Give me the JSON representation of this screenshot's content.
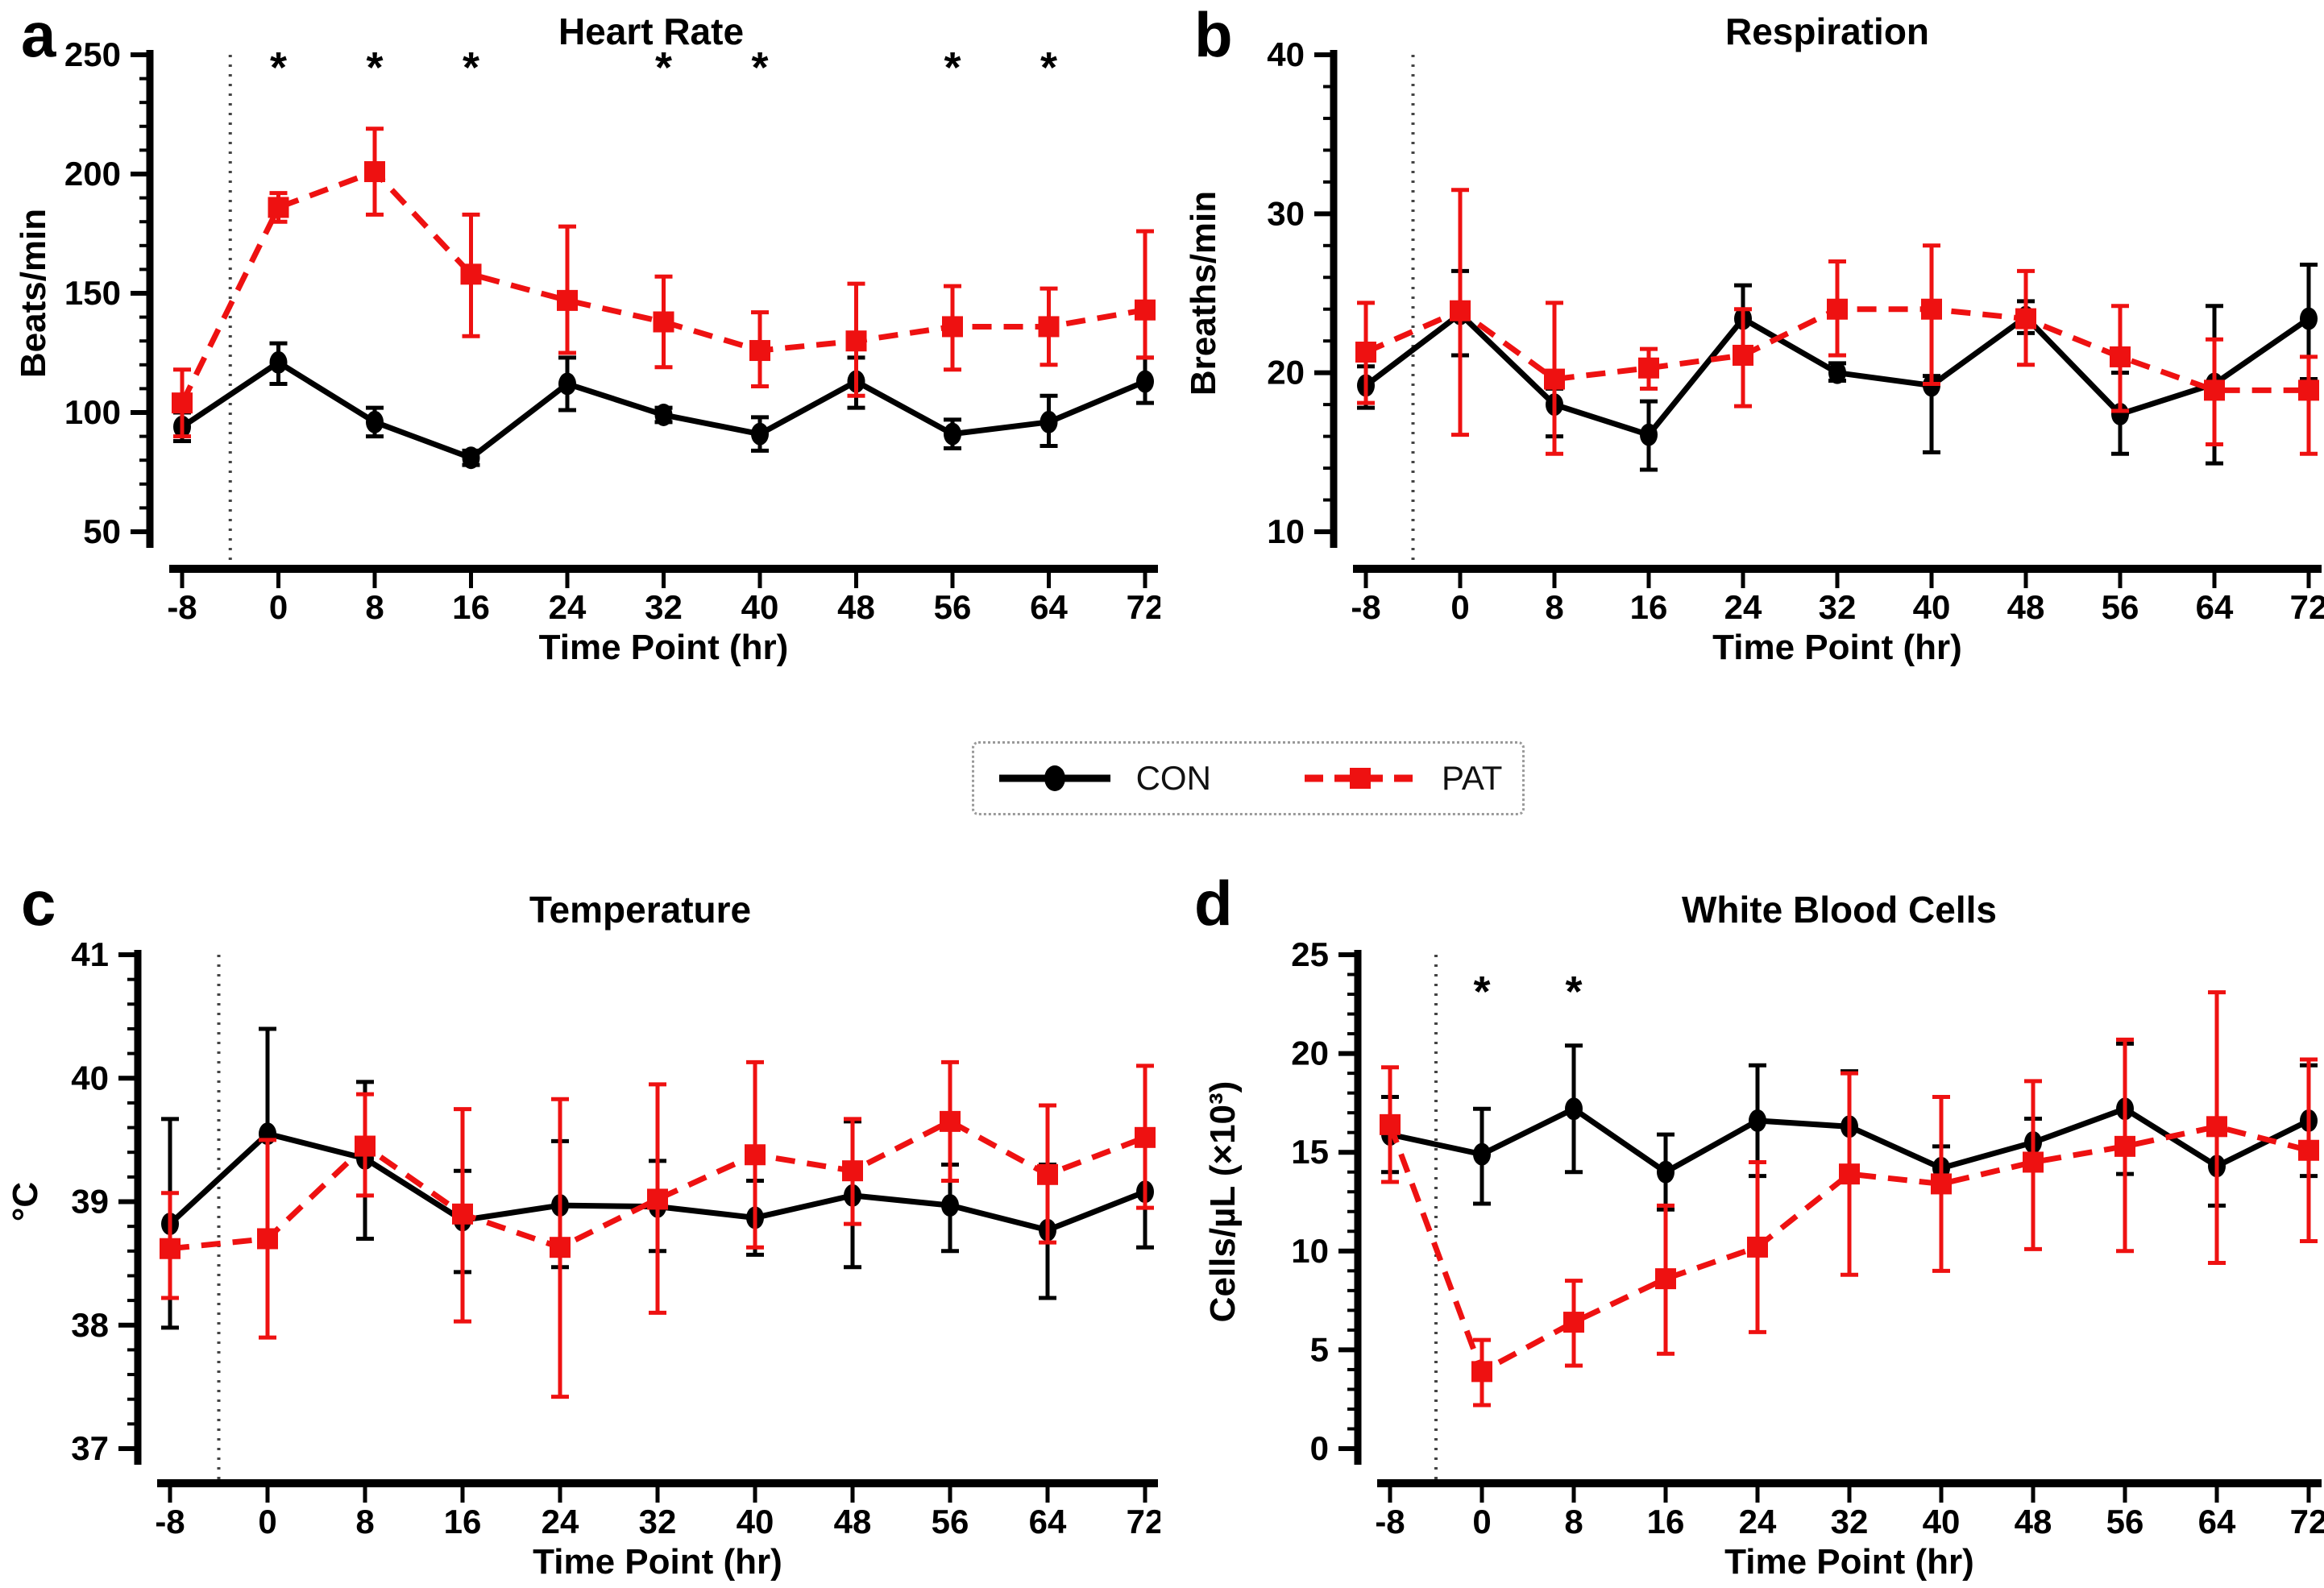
{
  "styles": {
    "con_color": "#000000",
    "pat_color": "#EE1111",
    "baseline_vline_color": "#444444",
    "significance_marker": "*"
  },
  "legend": {
    "items": [
      {
        "label": "CON",
        "color": "#000000",
        "marker": "circle",
        "line_style": "solid"
      },
      {
        "label": "PAT",
        "color": "#EE1111",
        "marker": "square",
        "line_style": "dashed"
      }
    ]
  },
  "chart_data": [
    {
      "id": "a",
      "panel_letter": "a",
      "type": "line",
      "title": "Heart Rate",
      "xlabel": "Time Point (hr)",
      "ylabel": "Beats/min",
      "ylim": [
        50,
        250
      ],
      "yticks": [
        50,
        100,
        150,
        200,
        250
      ],
      "minor_tick_step": 10,
      "x": [
        -8,
        0,
        8,
        16,
        24,
        32,
        40,
        48,
        56,
        64,
        72
      ],
      "x_tick_labels": [
        "-8",
        "0",
        "8",
        "16",
        "24",
        "32",
        "40",
        "48",
        "56",
        "64",
        "72"
      ],
      "vline_x": -4,
      "significance_x": [
        0,
        8,
        16,
        32,
        40,
        56,
        64
      ],
      "series": [
        {
          "name": "CON",
          "color": "#000000",
          "marker": "circle",
          "line_style": "solid",
          "values": [
            94,
            121,
            96,
            81,
            112,
            99,
            91,
            113,
            91,
            96,
            113
          ],
          "err_up": [
            6,
            8,
            6,
            3,
            11,
            3,
            7,
            10,
            6,
            11,
            10
          ],
          "err_down": [
            6,
            9,
            6,
            3,
            11,
            3,
            7,
            11,
            6,
            10,
            9
          ]
        },
        {
          "name": "PAT",
          "color": "#EE1111",
          "marker": "square",
          "line_style": "dashed",
          "values": [
            104,
            186,
            201,
            158,
            147,
            138,
            126,
            130,
            136,
            136,
            143
          ],
          "err_up": [
            14,
            6,
            18,
            25,
            31,
            19,
            16,
            24,
            17,
            16,
            33
          ],
          "err_down": [
            14,
            6,
            18,
            26,
            22,
            19,
            15,
            23,
            18,
            16,
            20
          ]
        }
      ]
    },
    {
      "id": "b",
      "panel_letter": "b",
      "type": "line",
      "title": "Respiration",
      "xlabel": "Time Point (hr)",
      "ylabel": "Breaths/min",
      "ylim": [
        10,
        40
      ],
      "yticks": [
        10,
        20,
        30,
        40
      ],
      "minor_tick_step": 2,
      "x": [
        -8,
        0,
        8,
        16,
        24,
        32,
        40,
        48,
        56,
        64,
        72
      ],
      "x_tick_labels": [
        "-8",
        "0",
        "8",
        "16",
        "24",
        "32",
        "40",
        "48",
        "56",
        "64",
        "72"
      ],
      "vline_x": -4,
      "significance_x": [],
      "series": [
        {
          "name": "CON",
          "color": "#000000",
          "marker": "circle",
          "line_style": "solid",
          "values": [
            19.2,
            23.7,
            18.0,
            16.1,
            23.4,
            20.0,
            19.2,
            23.5,
            17.4,
            19.3,
            23.4
          ],
          "err_up": [
            1.2,
            2.7,
            1.0,
            2.1,
            2.1,
            0.6,
            0.6,
            1.0,
            2.6,
            4.9,
            3.4
          ],
          "err_down": [
            1.4,
            2.6,
            2.0,
            2.2,
            1.9,
            0.5,
            4.2,
            1.0,
            2.5,
            5.0,
            3.8
          ]
        },
        {
          "name": "PAT",
          "color": "#EE1111",
          "marker": "square",
          "line_style": "dashed",
          "values": [
            21.3,
            23.9,
            19.6,
            20.3,
            21.1,
            24.0,
            24.0,
            23.4,
            21.0,
            18.9,
            18.9
          ],
          "err_up": [
            3.1,
            7.6,
            4.8,
            1.2,
            2.9,
            3.0,
            4.0,
            3.0,
            3.2,
            3.2,
            2.1
          ],
          "err_down": [
            3.2,
            7.8,
            4.7,
            1.3,
            3.2,
            2.9,
            4.7,
            2.9,
            3.4,
            3.4,
            4.0
          ]
        }
      ]
    },
    {
      "id": "c",
      "panel_letter": "c",
      "type": "line",
      "title": "Temperature",
      "xlabel": "Time Point (hr)",
      "ylabel": "°C",
      "ylim": [
        37,
        41
      ],
      "yticks": [
        37,
        38,
        39,
        40,
        41
      ],
      "minor_tick_step": 0.2,
      "x": [
        -8,
        0,
        8,
        16,
        24,
        32,
        40,
        48,
        56,
        64,
        72
      ],
      "x_tick_labels": [
        "-8",
        "0",
        "8",
        "16",
        "24",
        "32",
        "40",
        "48",
        "56",
        "64",
        "72"
      ],
      "vline_x": -4,
      "significance_x": [],
      "series": [
        {
          "name": "CON",
          "color": "#000000",
          "marker": "circle",
          "line_style": "solid",
          "values": [
            38.82,
            39.55,
            39.35,
            38.85,
            38.97,
            38.96,
            38.87,
            39.05,
            38.97,
            38.77,
            39.08
          ],
          "err_up": [
            0.85,
            0.85,
            0.62,
            0.4,
            0.52,
            0.37,
            0.3,
            0.6,
            0.33,
            0.53,
            0.47
          ],
          "err_down": [
            0.84,
            0.85,
            0.65,
            0.42,
            0.5,
            0.36,
            0.3,
            0.58,
            0.37,
            0.55,
            0.45
          ]
        },
        {
          "name": "PAT",
          "color": "#EE1111",
          "marker": "square",
          "line_style": "dashed",
          "values": [
            38.62,
            38.7,
            39.45,
            38.9,
            38.63,
            39.02,
            39.38,
            39.25,
            39.65,
            39.22,
            39.52
          ],
          "err_up": [
            0.45,
            0.8,
            0.42,
            0.85,
            1.2,
            0.93,
            0.75,
            0.42,
            0.48,
            0.56,
            0.58
          ],
          "err_down": [
            0.4,
            0.8,
            0.4,
            0.87,
            1.21,
            0.92,
            0.75,
            0.43,
            0.48,
            0.55,
            0.57
          ]
        }
      ]
    },
    {
      "id": "d",
      "panel_letter": "d",
      "type": "line",
      "title": "White Blood Cells",
      "xlabel": "Time Point (hr)",
      "ylabel": "Cells/µL (×10³)",
      "ylim": [
        0,
        25
      ],
      "yticks": [
        0,
        5,
        10,
        15,
        20,
        25
      ],
      "minor_tick_step": 1,
      "x": [
        -8,
        0,
        8,
        16,
        24,
        32,
        40,
        48,
        56,
        64,
        72
      ],
      "x_tick_labels": [
        "-8",
        "0",
        "8",
        "16",
        "24",
        "32",
        "40",
        "48",
        "56",
        "64",
        "72"
      ],
      "vline_x": -4,
      "significance_x": [
        0,
        8
      ],
      "series": [
        {
          "name": "CON",
          "color": "#000000",
          "marker": "circle",
          "line_style": "solid",
          "values": [
            15.9,
            14.9,
            17.2,
            14.0,
            16.6,
            16.3,
            14.2,
            15.5,
            17.2,
            14.3,
            16.6
          ],
          "err_up": [
            1.9,
            2.3,
            3.2,
            1.9,
            2.8,
            2.8,
            1.1,
            1.2,
            3.3,
            2.0,
            2.8
          ],
          "err_down": [
            1.9,
            2.5,
            3.2,
            1.9,
            2.8,
            2.7,
            1.1,
            1.1,
            3.3,
            2.0,
            2.8
          ]
        },
        {
          "name": "PAT",
          "color": "#EE1111",
          "marker": "square",
          "line_style": "dashed",
          "values": [
            16.4,
            3.9,
            6.4,
            8.6,
            10.2,
            13.9,
            13.4,
            14.5,
            15.3,
            16.3,
            15.1
          ],
          "err_up": [
            2.9,
            1.6,
            2.1,
            3.7,
            4.3,
            5.1,
            4.4,
            4.1,
            5.4,
            6.8,
            4.6
          ],
          "err_down": [
            2.9,
            1.7,
            2.2,
            3.8,
            4.3,
            5.1,
            4.4,
            4.4,
            5.3,
            6.9,
            4.6
          ]
        }
      ]
    }
  ]
}
